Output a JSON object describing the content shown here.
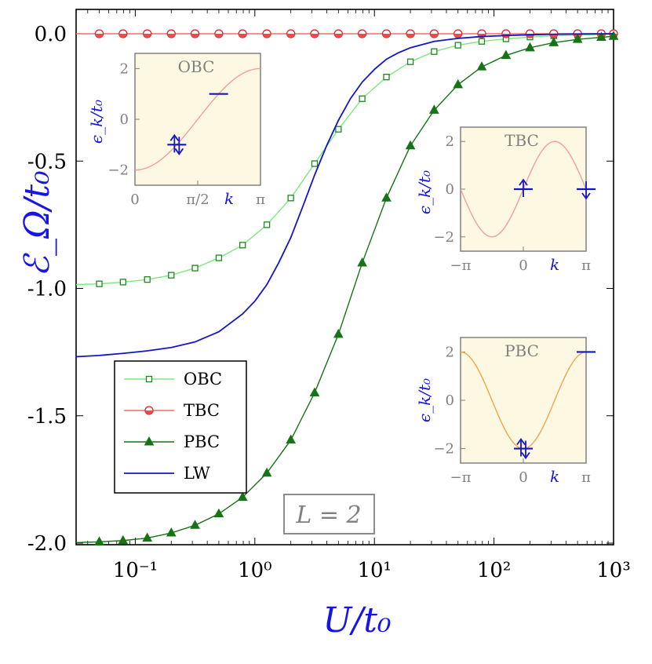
{
  "chart_data": {
    "type": "line",
    "xlabel": "U/t₀",
    "ylabel": "ℰ_Ω/t₀",
    "xscale": "log",
    "xlim": [
      0.032,
      1000
    ],
    "ylim": [
      -2.0,
      0.05
    ],
    "x_tick_labels": [
      "10⁻¹",
      "10⁰",
      "10¹",
      "10²",
      "10³"
    ],
    "x_tick_values": [
      0.1,
      1,
      10,
      100,
      1000
    ],
    "y_tick_labels": [
      "0.0",
      "-0.5",
      "-1.0",
      "-1.5",
      "-2.0"
    ],
    "y_tick_values": [
      0.0,
      -0.5,
      -1.0,
      -1.5,
      -2.0
    ],
    "annotation": "L = 2",
    "legend_position": "lower-left",
    "legend": [
      {
        "label": "OBC",
        "color": "#7de87d",
        "marker": "square-open"
      },
      {
        "label": "TBC",
        "color": "#f26c6c",
        "marker": "circle-half"
      },
      {
        "label": "PBC",
        "color": "#157415",
        "marker": "triangle"
      },
      {
        "label": "LW",
        "color": "#1515c8",
        "marker": "none"
      }
    ],
    "series": [
      {
        "name": "OBC",
        "color": "#7de87d",
        "marker": "square-open",
        "x": [
          0.032,
          0.05,
          0.079,
          0.126,
          0.2,
          0.316,
          0.5,
          0.79,
          1.26,
          2.0,
          3.16,
          5.0,
          7.9,
          12.6,
          20,
          31.6,
          50,
          79,
          126,
          200,
          316,
          500,
          790,
          1000
        ],
        "y": [
          -0.985,
          -0.982,
          -0.975,
          -0.965,
          -0.948,
          -0.92,
          -0.88,
          -0.83,
          -0.75,
          -0.645,
          -0.51,
          -0.375,
          -0.255,
          -0.17,
          -0.11,
          -0.07,
          -0.045,
          -0.03,
          -0.02,
          -0.013,
          -0.008,
          -0.005,
          -0.003,
          -0.002
        ]
      },
      {
        "name": "TBC",
        "color": "#f26c6c",
        "marker": "circle-half",
        "x": [
          0.032,
          0.05,
          0.079,
          0.126,
          0.2,
          0.316,
          0.5,
          0.79,
          1.26,
          2.0,
          3.16,
          5.0,
          7.9,
          12.6,
          20,
          31.6,
          50,
          79,
          126,
          200,
          316,
          500,
          790,
          1000
        ],
        "y": [
          0,
          0,
          0,
          0,
          0,
          0,
          0,
          0,
          0,
          0,
          0,
          0,
          0,
          0,
          0,
          0,
          0,
          0,
          0,
          0,
          0,
          0,
          0,
          0
        ]
      },
      {
        "name": "PBC",
        "color": "#157415",
        "marker": "triangle",
        "x": [
          0.032,
          0.05,
          0.079,
          0.126,
          0.2,
          0.316,
          0.5,
          0.79,
          1.26,
          2.0,
          3.16,
          5.0,
          7.9,
          12.6,
          20,
          31.6,
          50,
          79,
          126,
          200,
          316,
          500,
          790,
          1000
        ],
        "y": [
          -1.998,
          -1.995,
          -1.99,
          -1.98,
          -1.96,
          -1.93,
          -1.885,
          -1.82,
          -1.725,
          -1.595,
          -1.41,
          -1.18,
          -0.9,
          -0.645,
          -0.44,
          -0.3,
          -0.2,
          -0.13,
          -0.085,
          -0.055,
          -0.035,
          -0.022,
          -0.014,
          -0.01
        ]
      },
      {
        "name": "LW",
        "color": "#1515c8",
        "marker": "none",
        "x": [
          0.032,
          0.05,
          0.079,
          0.126,
          0.2,
          0.316,
          0.5,
          0.79,
          1.0,
          1.26,
          1.58,
          2.0,
          2.51,
          3.16,
          3.98,
          5.0,
          6.3,
          7.9,
          10,
          12.6,
          15.8,
          20,
          31.6,
          50,
          79,
          126,
          200,
          316,
          500,
          1000
        ],
        "y": [
          -1.268,
          -1.263,
          -1.255,
          -1.245,
          -1.232,
          -1.21,
          -1.17,
          -1.1,
          -1.05,
          -0.985,
          -0.9,
          -0.8,
          -0.68,
          -0.555,
          -0.44,
          -0.34,
          -0.255,
          -0.19,
          -0.14,
          -0.1,
          -0.075,
          -0.055,
          -0.03,
          -0.018,
          -0.011,
          -0.007,
          -0.004,
          -0.002,
          -0.001,
          0.0
        ]
      }
    ],
    "insets": [
      {
        "title": "OBC",
        "curve_color": "#f29a9a",
        "ylabel": "ϵ_k/t₀",
        "klabel": "k",
        "xlim": [
          0,
          3.1416
        ],
        "ylim": [
          -2.6,
          2.6
        ],
        "x_tick_labels": [
          "0",
          "π/2",
          "π"
        ],
        "x_tick_values": [
          0,
          1.5708,
          3.1416
        ],
        "y_tick_labels": [
          "2",
          "0",
          "−2"
        ],
        "y_tick_values": [
          2,
          0,
          -2
        ],
        "curve": "-2cos(k)",
        "levels": [
          {
            "k": 1.0472,
            "e": -1.0,
            "spin": "up-down"
          },
          {
            "k": 2.0944,
            "e": 1.0,
            "spin": "empty"
          }
        ]
      },
      {
        "title": "TBC",
        "curve_color": "#f29a9a",
        "ylabel": "ϵ_k/t₀",
        "klabel": "k",
        "xlim": [
          -3.1416,
          3.1416
        ],
        "ylim": [
          -2.6,
          2.6
        ],
        "x_tick_labels": [
          "−π",
          "0",
          "π"
        ],
        "x_tick_values": [
          -3.1416,
          0,
          3.1416
        ],
        "y_tick_labels": [
          "2",
          "0",
          "−2"
        ],
        "y_tick_values": [
          2,
          0,
          -2
        ],
        "curve": "2sin(k)",
        "levels": [
          {
            "k": 0,
            "e": 0,
            "spin": "up"
          },
          {
            "k": 3.1416,
            "e": 0,
            "spin": "down"
          }
        ]
      },
      {
        "title": "PBC",
        "curve_color": "#f2a040",
        "ylabel": "ϵ_k/t₀",
        "klabel": "k",
        "xlim": [
          -3.1416,
          3.1416
        ],
        "ylim": [
          -2.6,
          2.6
        ],
        "x_tick_labels": [
          "−π",
          "0",
          "π"
        ],
        "x_tick_values": [
          -3.1416,
          0,
          3.1416
        ],
        "y_tick_labels": [
          "2",
          "0",
          "−2"
        ],
        "y_tick_values": [
          2,
          0,
          -2
        ],
        "curve": "-2cos(k)",
        "levels": [
          {
            "k": 0,
            "e": -2,
            "spin": "up-down"
          },
          {
            "k": 3.1416,
            "e": 2,
            "spin": "empty"
          }
        ]
      }
    ]
  }
}
